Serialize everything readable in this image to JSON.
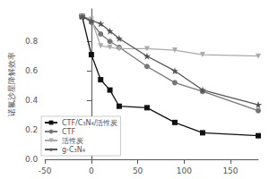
{
  "chart_data": {
    "type": "line",
    "ylabel": "诺氟沙星降解效率",
    "xlim": [
      -50,
      180
    ],
    "ylim": [
      0.0,
      1.02
    ],
    "xticks": [
      -50,
      0,
      50,
      100,
      150
    ],
    "yticks": [
      {
        "value": 0.0,
        "label": "0.0"
      },
      0.2,
      0.4,
      0.6,
      0.8
    ],
    "grid": false,
    "legend": "lower left",
    "x": [
      -10,
      0,
      10,
      20,
      30,
      60,
      90,
      120,
      180
    ],
    "series": [
      {
        "name": "CTF/C₃N₄/活性炭",
        "color": "#111111",
        "marker": "square",
        "line_style": "solid",
        "values": [
          0.97,
          0.71,
          0.54,
          0.47,
          0.36,
          0.35,
          0.25,
          0.18,
          0.16
        ]
      },
      {
        "name": "CTF",
        "color": "#777777",
        "marker": "circle",
        "line_style": "solid",
        "values": [
          0.97,
          0.93,
          0.85,
          0.8,
          0.76,
          0.63,
          0.52,
          0.46,
          0.33
        ]
      },
      {
        "name": "活性炭",
        "color": "#aaaaaa",
        "marker": "triangle_down",
        "line_style": "solid",
        "values": [
          0.97,
          0.95,
          0.77,
          0.76,
          0.75,
          0.75,
          0.74,
          0.71,
          0.7
        ]
      },
      {
        "name": "g-C₃N₄",
        "color": "#555555",
        "marker": "star",
        "line_style": "solid",
        "values": [
          0.97,
          0.94,
          0.92,
          0.87,
          0.82,
          0.7,
          0.6,
          0.47,
          0.37
        ]
      }
    ]
  }
}
